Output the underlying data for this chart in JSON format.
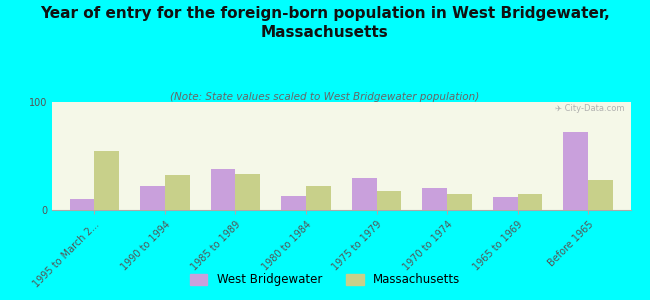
{
  "title": "Year of entry for the foreign-born population in West Bridgewater,\nMassachusetts",
  "subtitle": "(Note: State values scaled to West Bridgewater population)",
  "categories": [
    "1995 to March 2...",
    "1990 to 1994",
    "1985 to 1989",
    "1980 to 1984",
    "1975 to 1979",
    "1970 to 1974",
    "1965 to 1969",
    "Before 1965"
  ],
  "west_bridgewater": [
    10,
    22,
    38,
    13,
    30,
    20,
    12,
    72
  ],
  "massachusetts": [
    55,
    32,
    33,
    22,
    18,
    15,
    15,
    28
  ],
  "bar_color_wb": "#c9a0dc",
  "bar_color_ma": "#c8d08a",
  "background_color": "#00ffff",
  "plot_bg": "#f5f8e8",
  "ylim": [
    0,
    100
  ],
  "yticks": [
    0,
    100
  ],
  "legend_wb": "West Bridgewater",
  "legend_ma": "Massachusetts",
  "title_fontsize": 11,
  "subtitle_fontsize": 7.5,
  "tick_fontsize": 7
}
